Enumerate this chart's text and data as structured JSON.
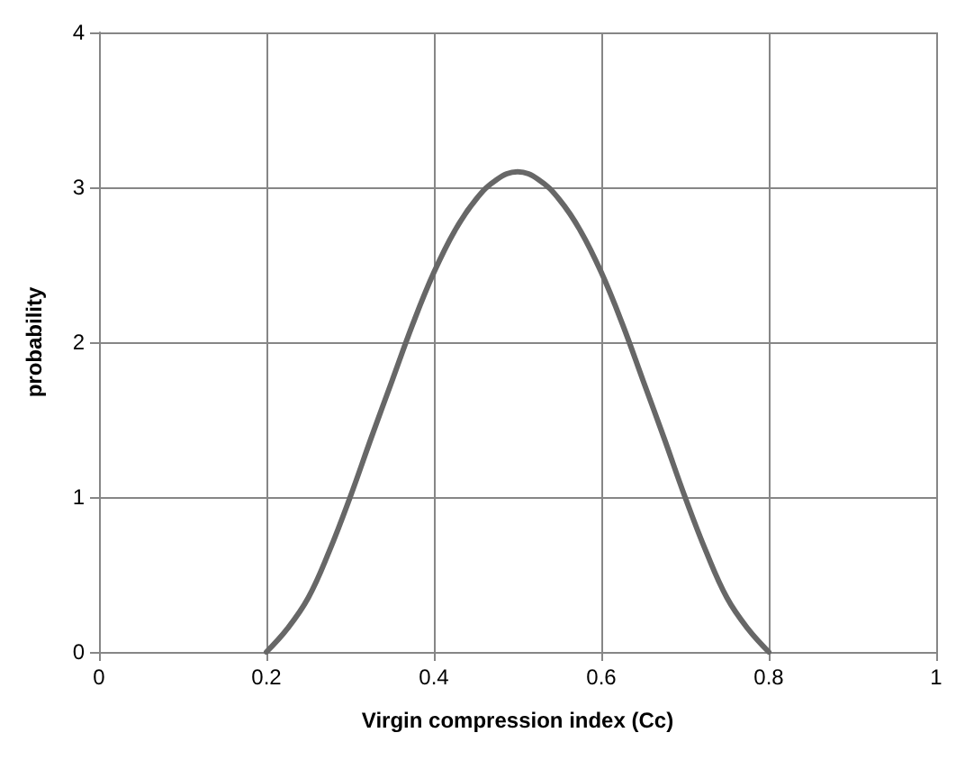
{
  "chart_data": {
    "type": "line",
    "xlabel": "Virgin compression index (Cc)",
    "ylabel": "probability",
    "x": [
      0.2,
      0.225,
      0.25,
      0.275,
      0.3,
      0.325,
      0.35,
      0.375,
      0.4,
      0.425,
      0.45,
      0.475,
      0.5,
      0.525,
      0.55,
      0.575,
      0.6,
      0.625,
      0.65,
      0.675,
      0.7,
      0.725,
      0.75,
      0.775,
      0.8
    ],
    "series": [
      {
        "color": "#676767",
        "values": [
          0,
          0.15,
          0.35,
          0.65,
          1.0,
          1.38,
          1.75,
          2.12,
          2.45,
          2.72,
          2.92,
          3.05,
          3.1,
          3.05,
          2.92,
          2.72,
          2.45,
          2.12,
          1.75,
          1.38,
          1.0,
          0.65,
          0.35,
          0.15,
          0
        ]
      }
    ],
    "xlim": [
      0,
      1
    ],
    "xticks": [
      0,
      0.2,
      0.4,
      0.6,
      0.8,
      1
    ],
    "ylim": [
      0,
      4
    ],
    "yticks": [
      0,
      1,
      2,
      3,
      4
    ],
    "grid": true,
    "marker": "none",
    "line_style": "solid"
  }
}
